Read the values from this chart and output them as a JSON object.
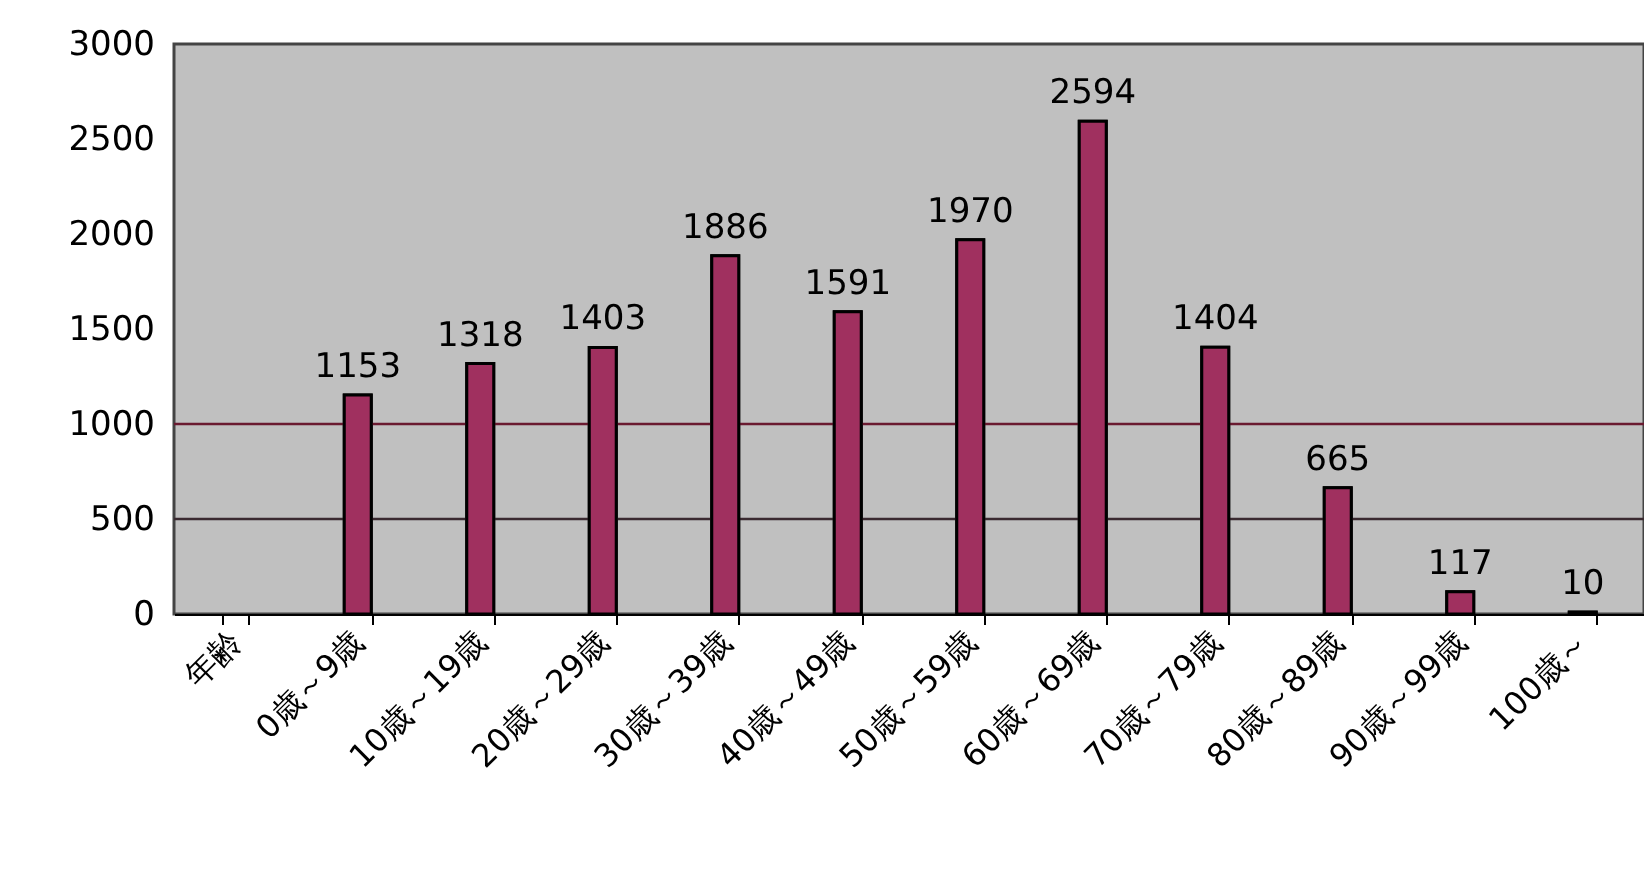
{
  "chart_data": {
    "type": "bar",
    "categories": [
      "年齢",
      "0歳～9歳",
      "10歳～19歳",
      "20歳～29歳",
      "30歳～39歳",
      "40歳～49歳",
      "50歳～59歳",
      "60歳～69歳",
      "70歳～79歳",
      "80歳～89歳",
      "90歳～99歳",
      "100歳～"
    ],
    "values": [
      null,
      1153,
      1318,
      1403,
      1886,
      1591,
      1970,
      2594,
      1404,
      665,
      117,
      10
    ],
    "color": "#a0305f",
    "ylim": [
      0,
      3000
    ],
    "yticks": [
      0,
      500,
      1000,
      1500,
      2000,
      2500,
      3000
    ],
    "grid": false,
    "data_labels": true,
    "ref_lines": [
      {
        "axis": "y",
        "value": 500,
        "color": "#3a2a30"
      },
      {
        "axis": "y",
        "value": 1000,
        "color": "#6a1a30"
      }
    ]
  }
}
